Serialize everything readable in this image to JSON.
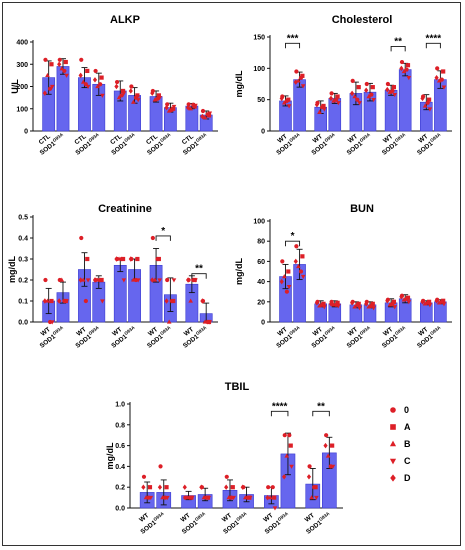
{
  "colors": {
    "bar": "#6666ee",
    "bar_stroke": "#3a3ad0",
    "point": "#dd1f27",
    "error": "#111111",
    "axis": "#111111"
  },
  "chart_data": [
    {
      "type": "bar",
      "title": "ALKP",
      "ylabel": "U/L",
      "ylim": [
        0,
        400
      ],
      "yticks": [
        "0",
        "100",
        "200",
        "300",
        "400"
      ],
      "categories": [
        {
          "a": "CTL",
          "b": "SOD1",
          "sup": "G93A"
        },
        {
          "a": "CTL",
          "b": "SOD1",
          "sup": "G93A"
        },
        {
          "a": "CTL",
          "b": "SOD1",
          "sup": "G93A"
        },
        {
          "a": "CTL",
          "b": "SOD1",
          "sup": "G93A"
        },
        {
          "a": "CTL",
          "b": "SOD1",
          "sup": "G93A"
        }
      ],
      "values": [
        [
          240,
          290
        ],
        [
          240,
          210
        ],
        [
          180,
          160
        ],
        [
          155,
          105
        ],
        [
          112,
          72
        ]
      ],
      "errors": [
        [
          75,
          35
        ],
        [
          45,
          50
        ],
        [
          45,
          35
        ],
        [
          25,
          20
        ],
        [
          12,
          18
        ]
      ],
      "points": [
        [
          [
            320,
            300,
            250,
            200,
            170,
            190
          ],
          [
            320,
            310,
            280,
            250,
            300,
            270
          ]
        ],
        [
          [
            320,
            270,
            220,
            200,
            250,
            210
          ],
          [
            270,
            240,
            200,
            160,
            230,
            210
          ]
        ],
        [
          [
            220,
            180,
            150,
            170,
            200,
            160
          ],
          [
            200,
            160,
            130,
            140,
            180,
            150
          ]
        ],
        [
          [
            180,
            160,
            140,
            150,
            170,
            145
          ],
          [
            120,
            100,
            90,
            110,
            105,
            95
          ]
        ],
        [
          [
            120,
            110,
            100,
            115,
            105,
            118
          ],
          [
            90,
            70,
            60,
            80,
            65,
            75
          ]
        ]
      ],
      "significance": []
    },
    {
      "type": "bar",
      "title": "Cholesterol",
      "ylabel": "mg/dL",
      "ylim": [
        0,
        150
      ],
      "yticks": [
        "0",
        "50",
        "100",
        "150"
      ],
      "categories": [
        {
          "a": "WT",
          "b": "SOD1",
          "sup": "G93A"
        },
        {
          "a": "WT",
          "b": "SOD1",
          "sup": "G93A"
        },
        {
          "a": "WT",
          "b": "SOD1",
          "sup": "G93A"
        },
        {
          "a": "WT",
          "b": "SOD1",
          "sup": "G93A"
        },
        {
          "a": "WT",
          "b": "SOD1",
          "sup": "G93A"
        }
      ],
      "values": [
        [
          48,
          82
        ],
        [
          38,
          52
        ],
        [
          60,
          62
        ],
        [
          65,
          98
        ],
        [
          46,
          82
        ]
      ],
      "errors": [
        [
          8,
          12
        ],
        [
          10,
          8
        ],
        [
          18,
          14
        ],
        [
          8,
          10
        ],
        [
          12,
          14
        ]
      ],
      "points": [
        [
          [
            55,
            50,
            45,
            40,
            52,
            48
          ],
          [
            95,
            88,
            80,
            72,
            78,
            85
          ]
        ],
        [
          [
            45,
            40,
            30,
            35,
            42,
            38
          ],
          [
            60,
            55,
            48,
            45,
            52,
            50
          ]
        ],
        [
          [
            80,
            70,
            55,
            45,
            60,
            50
          ],
          [
            75,
            70,
            55,
            50,
            65,
            58
          ]
        ],
        [
          [
            75,
            70,
            62,
            58,
            66,
            64
          ],
          [
            110,
            105,
            95,
            85,
            100,
            98
          ]
        ],
        [
          [
            55,
            50,
            40,
            35,
            52,
            45
          ],
          [
            100,
            95,
            80,
            70,
            85,
            82
          ]
        ]
      ],
      "significance": [
        {
          "pair": 0,
          "label": "***",
          "level": 140
        },
        {
          "pair": 3,
          "label": "**",
          "level": 135
        },
        {
          "pair": 4,
          "label": "****",
          "level": 140
        }
      ]
    },
    {
      "type": "bar",
      "title": "Creatinine",
      "ylabel": "mg/dL",
      "ylim": [
        0,
        0.5
      ],
      "yticks": [
        "0.0",
        "0.1",
        "0.2",
        "0.3",
        "0.4",
        "0.5"
      ],
      "categories": [
        {
          "a": "WT",
          "b": "SOD1",
          "sup": "G93A"
        },
        {
          "a": "WT",
          "b": "SOD1",
          "sup": "G93A"
        },
        {
          "a": "WT",
          "b": "SOD1",
          "sup": "G93A"
        },
        {
          "a": "WT",
          "b": "SOD1",
          "sup": "G93A"
        },
        {
          "a": "WT",
          "b": "SOD1",
          "sup": "G93A"
        }
      ],
      "values": [
        [
          0.1,
          0.14
        ],
        [
          0.25,
          0.19
        ],
        [
          0.27,
          0.25
        ],
        [
          0.27,
          0.13
        ],
        [
          0.18,
          0.04
        ]
      ],
      "errors": [
        [
          0.06,
          0.05
        ],
        [
          0.08,
          0.03
        ],
        [
          0.03,
          0.05
        ],
        [
          0.08,
          0.08
        ],
        [
          0.04,
          0.05
        ]
      ],
      "points": [
        [
          [
            0.2,
            0.1,
            0.1,
            0.0,
            0.1,
            0.0
          ],
          [
            0.2,
            0.1,
            0.2,
            0.1,
            0.1,
            0.1
          ]
        ],
        [
          [
            0.4,
            0.3,
            0.2,
            0.2,
            0.2,
            0.1
          ],
          [
            0.2,
            0.2,
            0.2,
            0.1,
            0.2,
            0.2
          ]
        ],
        [
          [
            0.3,
            0.3,
            0.3,
            0.2,
            0.3,
            0.3
          ],
          [
            0.3,
            0.3,
            0.2,
            0.2,
            0.3,
            0.2
          ]
        ],
        [
          [
            0.4,
            0.3,
            0.2,
            0.2,
            0.2,
            0.3
          ],
          [
            0.2,
            0.1,
            0.0,
            0.2,
            0.1,
            0.1
          ]
        ],
        [
          [
            0.2,
            0.2,
            0.1,
            0.2,
            0.2,
            0.2
          ],
          [
            0.1,
            0.0,
            0.0,
            0.0,
            0.1,
            0.0
          ]
        ]
      ],
      "significance": [
        {
          "pair": 3,
          "label": "*",
          "level": 0.41
        },
        {
          "pair": 4,
          "label": "**",
          "level": 0.23
        }
      ]
    },
    {
      "type": "bar",
      "title": "BUN",
      "ylabel": "mg/dL",
      "ylim": [
        0,
        100
      ],
      "yticks": [
        "0",
        "20",
        "40",
        "60",
        "80",
        "100"
      ],
      "categories": [
        {
          "a": "WT",
          "b": "SOD1",
          "sup": "G93A"
        },
        {
          "a": "WT",
          "b": "SOD1",
          "sup": "G93A"
        },
        {
          "a": "WT",
          "b": "SOD1",
          "sup": "G93A"
        },
        {
          "a": "WT",
          "b": "SOD1",
          "sup": "G93A"
        },
        {
          "a": "WT",
          "b": "SOD1",
          "sup": "G93A"
        }
      ],
      "values": [
        [
          45,
          57
        ],
        [
          18,
          18
        ],
        [
          17,
          17
        ],
        [
          19,
          23
        ],
        [
          19,
          20
        ]
      ],
      "errors": [
        [
          12,
          15
        ],
        [
          3,
          3
        ],
        [
          3,
          3
        ],
        [
          4,
          4
        ],
        [
          2,
          2
        ]
      ],
      "points": [
        [
          [
            60,
            50,
            45,
            35,
            40,
            30
          ],
          [
            75,
            65,
            55,
            45,
            60,
            50
          ]
        ],
        [
          [
            20,
            18,
            16,
            15,
            19,
            17
          ],
          [
            20,
            19,
            17,
            16,
            18,
            17
          ]
        ],
        [
          [
            20,
            18,
            15,
            14,
            19,
            17
          ],
          [
            20,
            18,
            15,
            14,
            18,
            16
          ]
        ],
        [
          [
            22,
            20,
            17,
            15,
            21,
            18
          ],
          [
            26,
            24,
            22,
            20,
            25,
            23
          ]
        ],
        [
          [
            21,
            20,
            18,
            17,
            20,
            19
          ],
          [
            22,
            21,
            19,
            18,
            21,
            20
          ]
        ]
      ],
      "significance": [
        {
          "pair": 0,
          "label": "*",
          "level": 80
        }
      ]
    },
    {
      "type": "bar",
      "title": "TBIL",
      "ylabel": "mg/dL",
      "ylim": [
        0,
        1.0
      ],
      "yticks": [
        "0.0",
        "0.2",
        "0.4",
        "0.6",
        "0.8",
        "1.0"
      ],
      "categories": [
        {
          "a": "WT",
          "b": "SOD1",
          "sup": "G93A"
        },
        {
          "a": "WT",
          "b": "SOD1",
          "sup": "G93A"
        },
        {
          "a": "WT",
          "b": "SOD1",
          "sup": "G93A"
        },
        {
          "a": "WT",
          "b": "SOD1",
          "sup": "G93A"
        },
        {
          "a": "WT",
          "b": "SOD1",
          "sup": "G93A"
        }
      ],
      "values": [
        [
          0.15,
          0.15
        ],
        [
          0.12,
          0.13
        ],
        [
          0.17,
          0.13
        ],
        [
          0.12,
          0.52
        ],
        [
          0.23,
          0.53
        ]
      ],
      "errors": [
        [
          0.1,
          0.12
        ],
        [
          0.04,
          0.06
        ],
        [
          0.1,
          0.07
        ],
        [
          0.08,
          0.2
        ],
        [
          0.15,
          0.15
        ]
      ],
      "points": [
        [
          [
            0.3,
            0.2,
            0.1,
            0.1,
            0.2,
            0.1
          ],
          [
            0.4,
            0.2,
            0.1,
            0.1,
            0.2,
            0.1
          ]
        ],
        [
          [
            0.1,
            0.1,
            0.1,
            0.1,
            0.2,
            0.1
          ],
          [
            0.2,
            0.1,
            0.1,
            0.1,
            0.2,
            0.1
          ]
        ],
        [
          [
            0.3,
            0.2,
            0.1,
            0.1,
            0.2,
            0.1
          ],
          [
            0.2,
            0.1,
            0.1,
            0.1,
            0.2,
            0.1
          ]
        ],
        [
          [
            0.2,
            0.1,
            0.1,
            0.0,
            0.1,
            0.2
          ],
          [
            0.7,
            0.6,
            0.5,
            0.4,
            0.3,
            0.7
          ]
        ],
        [
          [
            0.4,
            0.2,
            0.1,
            0.1,
            0.3,
            0.2
          ],
          [
            0.7,
            0.6,
            0.5,
            0.4,
            0.6,
            0.4
          ]
        ]
      ],
      "significance": [
        {
          "pair": 3,
          "label": "****",
          "level": 0.93
        },
        {
          "pair": 4,
          "label": "**",
          "level": 0.93
        }
      ]
    }
  ],
  "legend": {
    "placement": "right",
    "entries": [
      {
        "label": "0",
        "marker": "circle"
      },
      {
        "label": "A",
        "marker": "square"
      },
      {
        "label": "B",
        "marker": "triangle-up"
      },
      {
        "label": "C",
        "marker": "triangle-down"
      },
      {
        "label": "D",
        "marker": "diamond"
      }
    ]
  }
}
